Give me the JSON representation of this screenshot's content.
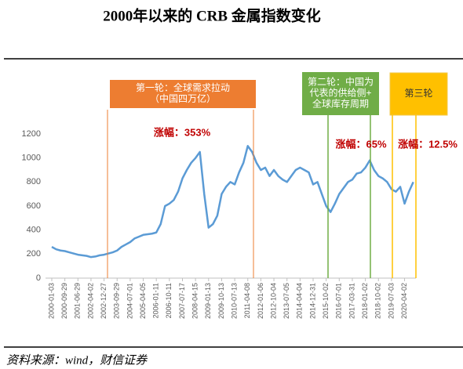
{
  "chart_data": {
    "type": "line",
    "title": "2000年以来的 CRB 金属指数变化",
    "categories": [
      "2000-01-03",
      null,
      null,
      "2000-09-29",
      null,
      null,
      "2001-06-29",
      null,
      null,
      "2002-04-02",
      null,
      null,
      "2002-12-27",
      null,
      null,
      "2003-09-29",
      null,
      null,
      "2004-07-01",
      null,
      null,
      "2005-04-05",
      null,
      null,
      "2006-01-11",
      null,
      null,
      "2006-10-11",
      null,
      null,
      "2007-07-17",
      null,
      null,
      "2008-04-15",
      null,
      null,
      "2009-01-13",
      null,
      null,
      "2009-10-13",
      null,
      null,
      "2010-07-13",
      null,
      null,
      "2011-04-08",
      null,
      null,
      "2012-01-06",
      null,
      null,
      "2012-10-04",
      null,
      null,
      "2013-07-05",
      null,
      null,
      "2014-04-04",
      null,
      null,
      "2014-12-31",
      null,
      null,
      "2015-10-02",
      null,
      null,
      "2016-07-01",
      null,
      null,
      "2017-03-31",
      null,
      null,
      "2018-01-02",
      null,
      null,
      "2018-10-02",
      null,
      null,
      "2019-07-03",
      null,
      null,
      "2020-04-02",
      null,
      null
    ],
    "values": [
      260,
      240,
      230,
      225,
      215,
      205,
      195,
      190,
      185,
      175,
      180,
      190,
      195,
      205,
      215,
      230,
      260,
      280,
      300,
      330,
      345,
      360,
      365,
      370,
      380,
      450,
      600,
      620,
      650,
      720,
      830,
      900,
      960,
      1000,
      1050,
      700,
      420,
      450,
      520,
      700,
      760,
      800,
      780,
      880,
      960,
      1100,
      1050,
      960,
      900,
      920,
      850,
      900,
      850,
      820,
      800,
      850,
      900,
      920,
      900,
      880,
      780,
      800,
      700,
      600,
      550,
      620,
      700,
      750,
      800,
      820,
      870,
      880,
      920,
      980,
      900,
      850,
      830,
      800,
      740,
      720,
      760,
      620,
      720,
      800
    ],
    "color": "#5b9bd5",
    "ylim": [
      0,
      1200
    ],
    "yticks": [
      0,
      200,
      400,
      600,
      800,
      1000,
      1200
    ],
    "rounds": [
      {
        "label": [
          "第一轮：全球需求拉动",
          "（中国四万亿）"
        ],
        "change": "涨幅：353%",
        "color": "#ed7d31"
      },
      {
        "label": [
          "第二轮：中国为",
          "代表的供给侧+",
          "全球库存周期"
        ],
        "change": "涨幅：65%",
        "color": "#70ad47"
      },
      {
        "label": [
          "第三轮"
        ],
        "change": "涨幅：12.5%",
        "color": "#ffc000"
      }
    ],
    "source": "资料来源：wind，财信证券"
  }
}
